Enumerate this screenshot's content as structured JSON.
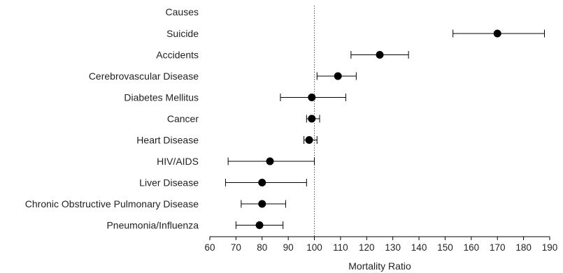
{
  "chart_data": {
    "type": "forest",
    "header": "Causes",
    "xlabel": "Mortality Ratio",
    "xlim": [
      60,
      190
    ],
    "xticks": [
      60,
      70,
      80,
      90,
      100,
      110,
      120,
      130,
      140,
      150,
      160,
      170,
      180,
      190
    ],
    "reference_line": 100,
    "grid": false,
    "rows": [
      {
        "label": "Suicide",
        "value": 170,
        "lower": 153,
        "upper": 188
      },
      {
        "label": "Accidents",
        "value": 125,
        "lower": 114,
        "upper": 136
      },
      {
        "label": "Cerebrovascular Disease",
        "value": 109,
        "lower": 101,
        "upper": 116
      },
      {
        "label": "Diabetes Mellitus",
        "value": 99,
        "lower": 87,
        "upper": 112
      },
      {
        "label": "Cancer",
        "value": 99,
        "lower": 97,
        "upper": 102
      },
      {
        "label": "Heart Disease",
        "value": 98,
        "lower": 96,
        "upper": 101
      },
      {
        "label": "HIV/AIDS",
        "value": 83,
        "lower": 67,
        "upper": 100
      },
      {
        "label": "Liver Disease",
        "value": 80,
        "lower": 66,
        "upper": 97
      },
      {
        "label": "Chronic Obstructive Pulmonary Disease",
        "value": 80,
        "lower": 72,
        "upper": 89
      },
      {
        "label": "Pneumonia/Influenza",
        "value": 79,
        "lower": 70,
        "upper": 88
      }
    ],
    "colors": {
      "point": "#000000",
      "whisker": "#000000",
      "axis": "#000000",
      "reference": "#555555"
    }
  }
}
